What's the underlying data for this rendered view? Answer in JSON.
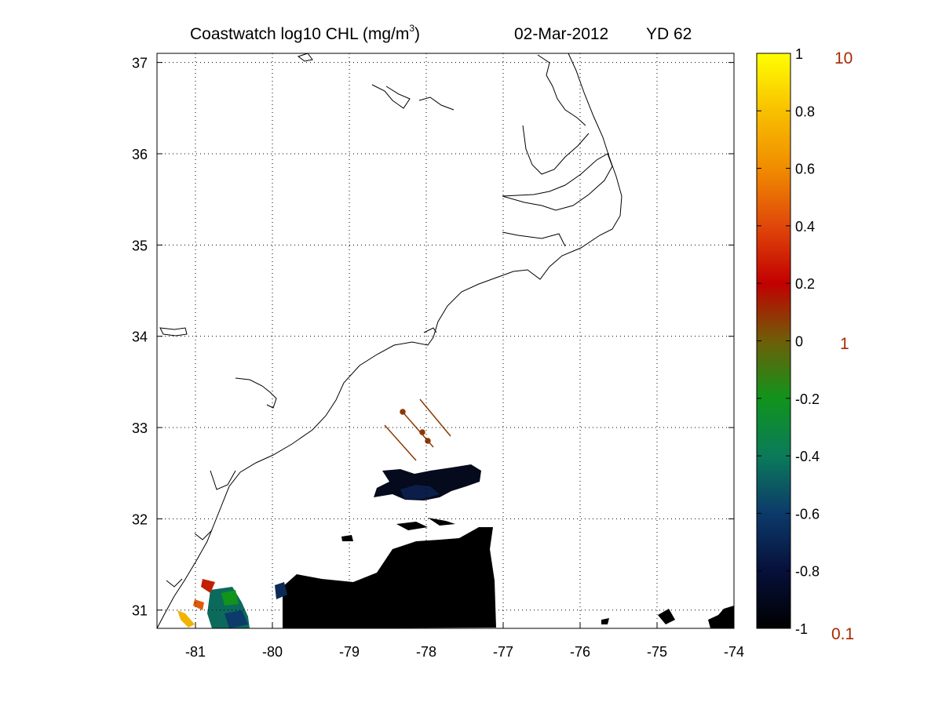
{
  "title": {
    "product": "Coastwatch  log10  CHL (mg/m",
    "superscript": "3",
    "close": ")",
    "date": "02-Mar-2012",
    "yearday": "YD 62"
  },
  "map": {
    "lon_range": [
      -81.5,
      -74
    ],
    "lat_range": [
      30.8,
      37.1
    ],
    "grid": true,
    "grid_style": "dotted",
    "x_ticks": [
      "-81",
      "-80",
      "-79",
      "-78",
      "-77",
      "-76",
      "-75",
      "-74"
    ],
    "y_ticks": [
      "37",
      "36",
      "35",
      "34",
      "33",
      "32",
      "31"
    ],
    "coastline_color": "#000000",
    "track_color": "#8b3a00",
    "no_data_color": "#ffffff"
  },
  "colorbar": {
    "range": [
      -1,
      1
    ],
    "ticks": [
      "1",
      "0.8",
      "0.6",
      "0.4",
      "0.2",
      "0",
      "-0.2",
      "-0.4",
      "-0.6",
      "-0.8",
      "-1"
    ],
    "right_labels": [
      "10",
      "1",
      "0.1"
    ],
    "colors": [
      "#000000",
      "#06103a",
      "#0c3a6a",
      "#0b7a5a",
      "#10941c",
      "#6e5e08",
      "#c20000",
      "#e0480a",
      "#f08c00",
      "#f8c000",
      "#ffff00"
    ]
  }
}
